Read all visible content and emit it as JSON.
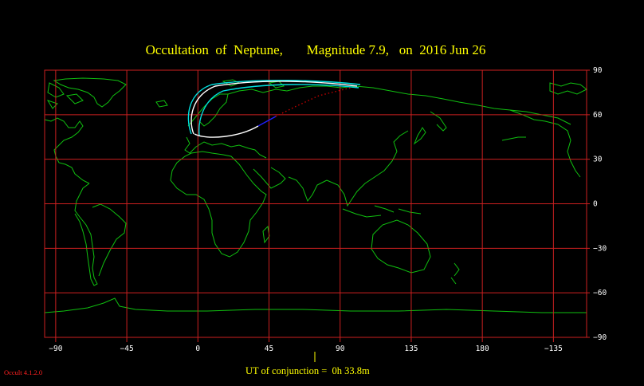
{
  "title": "Occultation  of  Neptune,       Magnitude 7.9,   on  2016 Jun 26",
  "conjunction_label": "UT of conjunction =  0h 33.8m",
  "version": "Occult 4.1.2.0",
  "colors": {
    "background": "#000000",
    "title": "#ffff00",
    "grid": "#cc2020",
    "coast": "#10c010",
    "path_white": "#ffffff",
    "path_cyan": "#00e0e0",
    "path_blue": "#2020ff",
    "path_red": "#c00000",
    "axis_text": "#ffffff",
    "version_text": "#ff2020"
  },
  "map": {
    "projection": "equirectangular",
    "lon_ticks": [
      {
        "value": -90,
        "label": "−90"
      },
      {
        "value": -45,
        "label": "−45"
      },
      {
        "value": 0,
        "label": "0"
      },
      {
        "value": 45,
        "label": "45"
      },
      {
        "value": 90,
        "label": "90"
      },
      {
        "value": 135,
        "label": "135"
      },
      {
        "value": 180,
        "label": "180"
      },
      {
        "value": 225,
        "label": "−135"
      }
    ],
    "lat_ticks": [
      {
        "value": 90,
        "label": "90"
      },
      {
        "value": 60,
        "label": "60"
      },
      {
        "value": 30,
        "label": "30"
      },
      {
        "value": 0,
        "label": "0"
      },
      {
        "value": -30,
        "label": "−30"
      },
      {
        "value": -60,
        "label": "−60"
      },
      {
        "value": -90,
        "label": "−90"
      }
    ],
    "lon_range": [
      -97,
      246
    ],
    "lat_range": [
      -90,
      90
    ]
  }
}
